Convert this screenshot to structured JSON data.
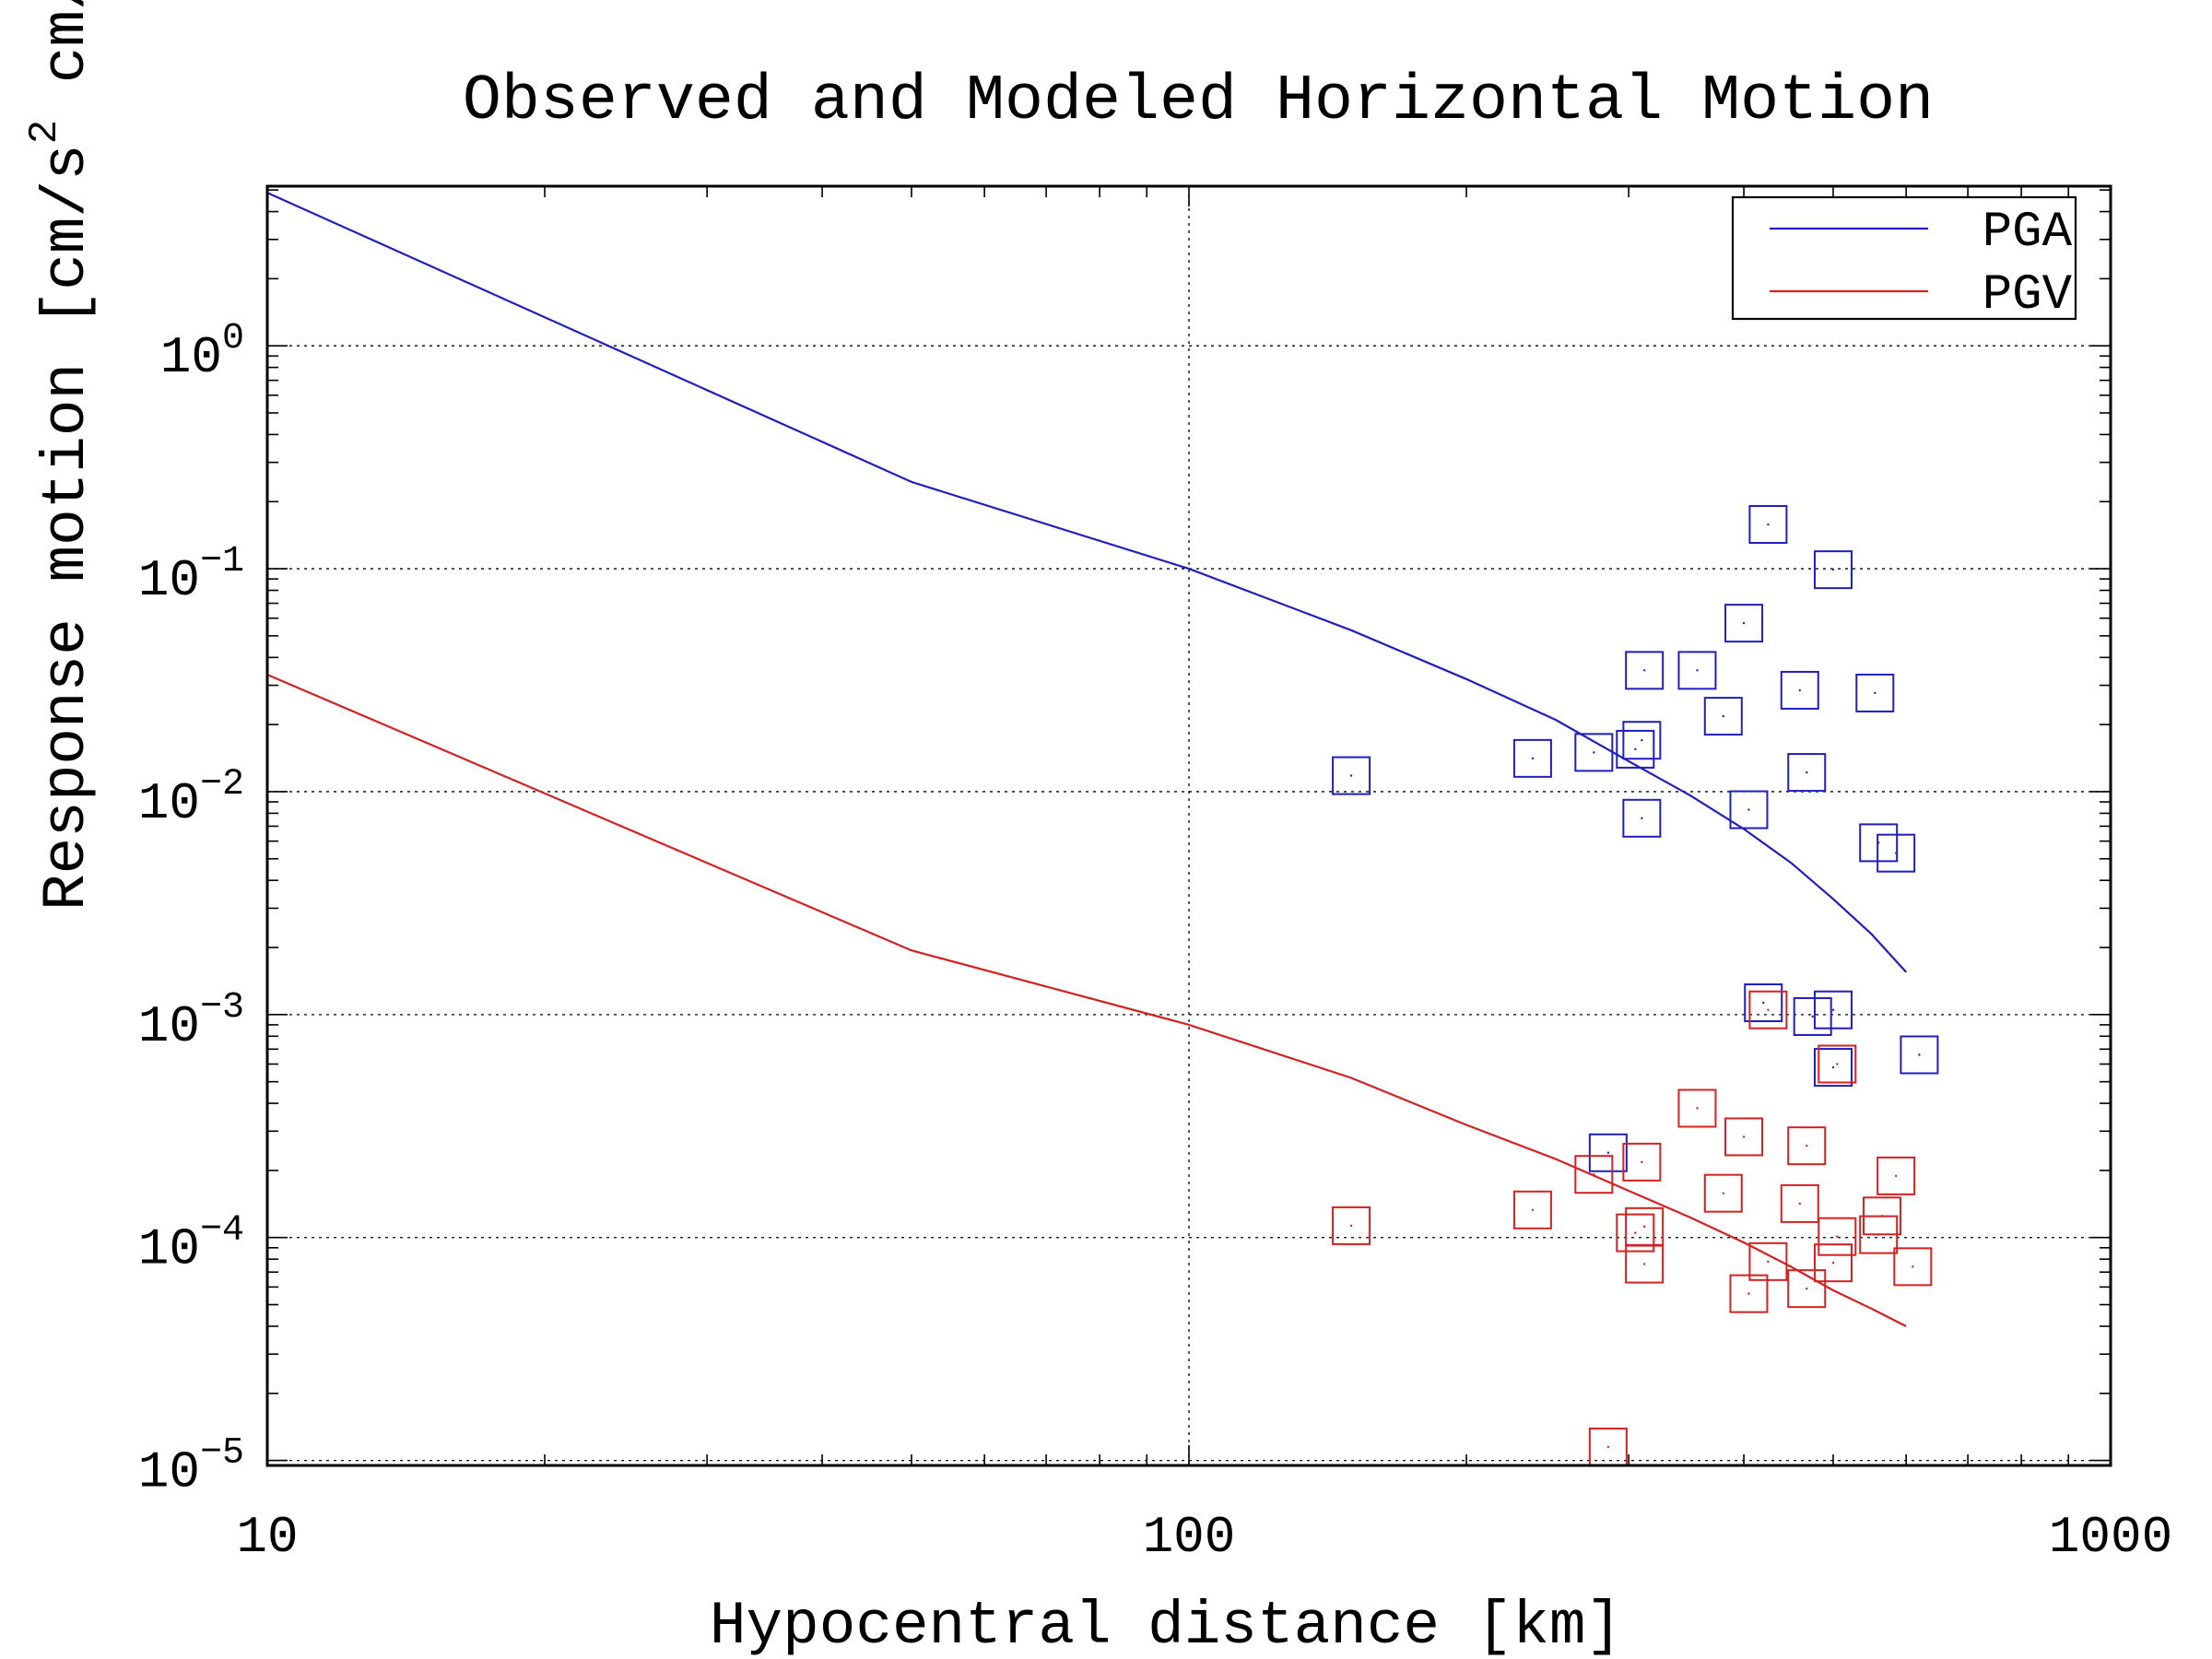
{
  "chart_data": {
    "type": "scatter",
    "title": "Observed and Modeled Horizontal Motion",
    "xlabel": "Hypocentral distance [km]",
    "ylabel": "Response motion  [cm/s",
    "ylabel_sup": "2",
    "ylabel_tail": "  cm/s]",
    "x_scale": "log",
    "y_scale": "log",
    "xlim": [
      10,
      1000
    ],
    "ylim": [
      9.5e-06,
      5.2
    ],
    "grid": true,
    "legend_position": "top-right",
    "x_ticks": [
      {
        "value": 10,
        "label": "10"
      },
      {
        "value": 100,
        "label": "100"
      },
      {
        "value": 1000,
        "label": "1000"
      }
    ],
    "y_ticks": [
      {
        "value": 1,
        "base": "10",
        "exp": "0"
      },
      {
        "value": 0.1,
        "base": "10",
        "exp": "−1"
      },
      {
        "value": 0.01,
        "base": "10",
        "exp": "−2"
      },
      {
        "value": 0.001,
        "base": "10",
        "exp": "−3"
      },
      {
        "value": 0.0001,
        "base": "10",
        "exp": "−4"
      },
      {
        "value": 1e-05,
        "base": "10",
        "exp": "−5"
      }
    ],
    "series": [
      {
        "name": "PGA",
        "color": "#1f1fbf",
        "model_curve": [
          [
            10,
            4.86
          ],
          [
            50,
            0.245
          ],
          [
            100,
            0.1
          ],
          [
            150,
            0.053
          ],
          [
            200,
            0.032
          ],
          [
            250,
            0.021
          ],
          [
            300,
            0.0137
          ],
          [
            350,
            0.0096
          ],
          [
            400,
            0.0068
          ],
          [
            450,
            0.0048
          ],
          [
            500,
            0.0033
          ],
          [
            550,
            0.0023
          ],
          [
            600,
            0.00155
          ]
        ],
        "observed": [
          [
            150,
            0.0118
          ],
          [
            236,
            0.0141
          ],
          [
            275,
            0.015
          ],
          [
            305,
            0.0155
          ],
          [
            310,
            0.017
          ],
          [
            310,
            0.0076
          ],
          [
            312,
            0.035
          ],
          [
            356,
            0.035
          ],
          [
            380,
            0.0218
          ],
          [
            400,
            0.057
          ],
          [
            405,
            0.0083
          ],
          [
            425,
            0.158
          ],
          [
            460,
            0.0285
          ],
          [
            468,
            0.0122
          ],
          [
            500,
            0.099
          ],
          [
            560,
            0.0059
          ],
          [
            555,
            0.0277
          ],
          [
            585,
            0.0053
          ],
          [
            420,
            0.00113
          ],
          [
            475,
            0.00098
          ],
          [
            500,
            0.00105
          ],
          [
            500,
            0.00058
          ],
          [
            620,
            0.00066
          ],
          [
            285,
            0.00024
          ]
        ]
      },
      {
        "name": "PGV",
        "color": "#d42020",
        "model_curve": [
          [
            10,
            0.0335
          ],
          [
            50,
            0.00194
          ],
          [
            100,
            0.0009
          ],
          [
            150,
            0.00052
          ],
          [
            200,
            0.00032
          ],
          [
            250,
            0.000225
          ],
          [
            300,
            0.000162
          ],
          [
            350,
            0.000123
          ],
          [
            400,
            9.5e-05
          ],
          [
            450,
            7.4e-05
          ],
          [
            500,
            5.8e-05
          ],
          [
            550,
            4.8e-05
          ],
          [
            600,
            4e-05
          ]
        ],
        "observed": [
          [
            150,
            0.000113
          ],
          [
            236,
            0.000133
          ],
          [
            275,
            0.000192
          ],
          [
            305,
            0.000105
          ],
          [
            310,
            0.000218
          ],
          [
            312,
            0.000112
          ],
          [
            312,
            7.6e-05
          ],
          [
            356,
            0.00038
          ],
          [
            380,
            0.000158
          ],
          [
            400,
            0.000283
          ],
          [
            405,
            5.6e-05
          ],
          [
            425,
            7.8e-05
          ],
          [
            425,
            0.00105
          ],
          [
            460,
            0.000142
          ],
          [
            468,
            0.000258
          ],
          [
            468,
            5.9e-05
          ],
          [
            500,
            7.7e-05
          ],
          [
            505,
            0.000101
          ],
          [
            505,
            0.0006
          ],
          [
            560,
            0.000103
          ],
          [
            565,
            0.000125
          ],
          [
            585,
            0.000189
          ],
          [
            610,
            7.4e-05
          ],
          [
            285,
            1.15e-05
          ]
        ]
      }
    ]
  }
}
